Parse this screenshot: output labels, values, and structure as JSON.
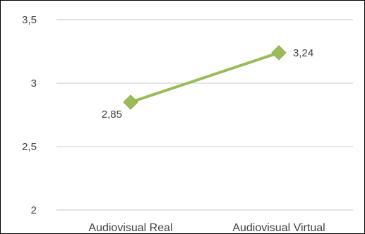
{
  "chart_data": {
    "type": "line",
    "categories": [
      "Audiovisual Real",
      "Audiovisual Virtual"
    ],
    "values": [
      2.85,
      3.24
    ],
    "value_labels": [
      "2,85",
      "3,24"
    ],
    "ylim": [
      2,
      3.5
    ],
    "yticks": [
      2,
      2.5,
      3,
      3.5
    ],
    "ytick_labels": [
      "2",
      "2,5",
      "3",
      "3,5"
    ],
    "grid": true,
    "legend": "none",
    "line_color": "#9bbb59",
    "marker": "diamond",
    "marker_color": "#9bbb59",
    "title": "",
    "xlabel": "",
    "ylabel": ""
  }
}
